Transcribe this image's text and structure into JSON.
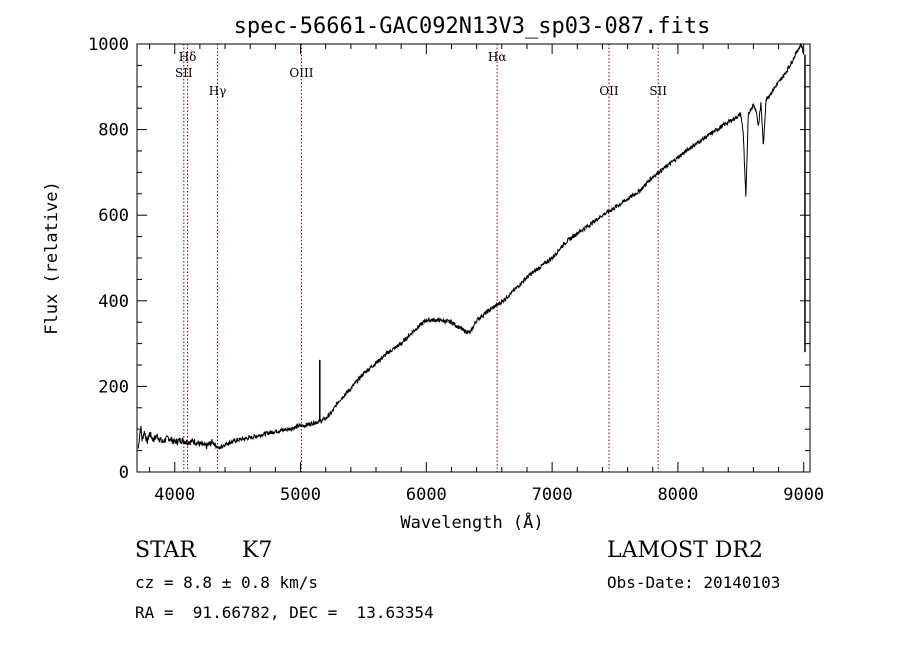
{
  "chart_data": {
    "type": "line",
    "title": "spec-56661-GAC092N13V3_sp03-087.fits",
    "xlabel": "Wavelength (Å)",
    "ylabel": "Flux (relative)",
    "xlim": [
      3700,
      9050
    ],
    "ylim": [
      0,
      1000
    ],
    "xticks": [
      "4000",
      "5000",
      "6000",
      "7000",
      "8000",
      "9000"
    ],
    "yticks": [
      "0",
      "200",
      "400",
      "600",
      "800",
      "1000"
    ],
    "grid": false,
    "legend": "none",
    "line_color": "#000000",
    "marker_color": "#8b0000",
    "lines": [
      {
        "label": "Hδ",
        "x": 4102,
        "row": 0
      },
      {
        "label": "SII",
        "x": 4072,
        "row": 1
      },
      {
        "label": "Hγ",
        "x": 4340,
        "row": 2
      },
      {
        "label": "OIII",
        "x": 5007,
        "row": 1
      },
      {
        "label": "Hα",
        "x": 6563,
        "row": 0
      },
      {
        "label": "OII",
        "x": 7452,
        "row": 2
      },
      {
        "label": "SII",
        "x": 7843,
        "row": 2
      }
    ],
    "series": [
      {
        "x": [
          3710,
          3720,
          3730,
          3740,
          3760,
          3780,
          3800,
          3830,
          3860,
          3900,
          3950,
          4000,
          4050,
          4100,
          4150,
          4200,
          4250,
          4300,
          4350,
          4400,
          4450,
          4500,
          4600,
          4700,
          4800,
          4900,
          5000,
          5050,
          5100,
          5150,
          5200,
          5250,
          5300,
          5400,
          5500,
          5600,
          5700,
          5800,
          5900,
          6000,
          6100,
          6200,
          6300,
          6350,
          6400,
          6500,
          6600,
          6700,
          6800,
          6900,
          7000,
          7100,
          7200,
          7300,
          7400,
          7500,
          7600,
          7700,
          7800,
          7900,
          8000,
          8100,
          8200,
          8300,
          8400,
          8450,
          8500,
          8520,
          8540,
          8560,
          8580,
          8600,
          8620,
          8640,
          8660,
          8680,
          8700,
          8750,
          8800,
          8850,
          8900,
          8950,
          8980,
          9000
        ],
        "y": [
          55,
          85,
          105,
          75,
          95,
          70,
          90,
          75,
          85,
          70,
          80,
          70,
          75,
          70,
          72,
          65,
          60,
          70,
          55,
          65,
          70,
          75,
          80,
          88,
          95,
          100,
          108,
          110,
          115,
          118,
          125,
          140,
          165,
          195,
          230,
          255,
          280,
          300,
          330,
          355,
          355,
          350,
          330,
          325,
          355,
          378,
          398,
          425,
          455,
          478,
          500,
          535,
          558,
          578,
          600,
          618,
          638,
          658,
          690,
          712,
          735,
          758,
          778,
          798,
          818,
          826,
          836,
          790,
          640,
          838,
          848,
          858,
          848,
          808,
          862,
          760,
          870,
          890,
          910,
          930,
          955,
          985,
          1000,
          975
        ],
        "spikes": [
          {
            "x": 5153,
            "y": 262
          },
          {
            "x": 9010,
            "y": 280
          }
        ]
      }
    ]
  },
  "info": {
    "object_type": "STAR",
    "subclass": "K7",
    "cz": "cz = 8.8 ± 0.8 km/s",
    "coords": "RA =  91.66782, DEC =  13.63354",
    "survey": "LAMOST DR2",
    "obs_date": "Obs-Date: 20140103"
  }
}
